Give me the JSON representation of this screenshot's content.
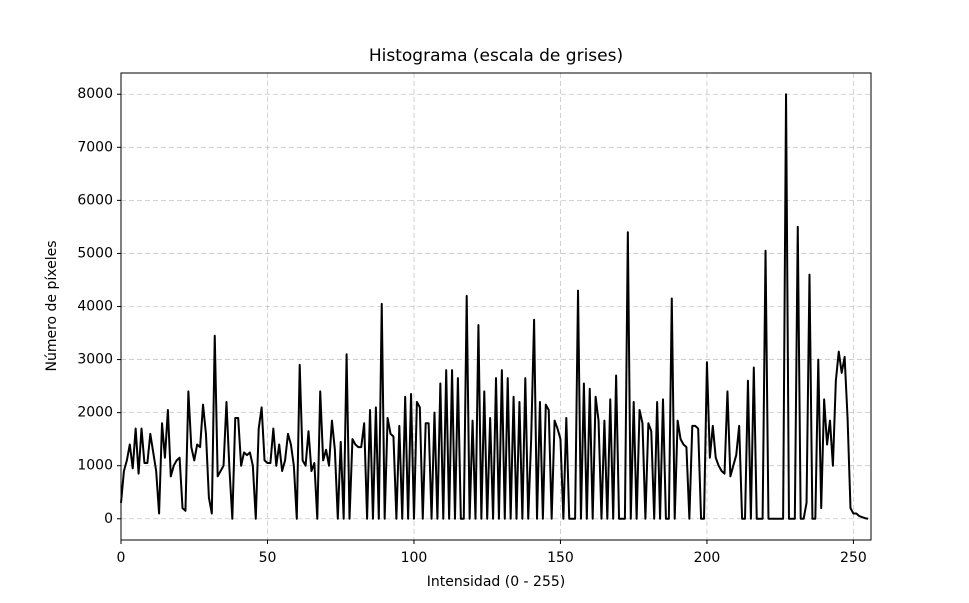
{
  "chart_data": {
    "type": "line",
    "title": "Histograma (escala de grises)",
    "xlabel": "Intensidad (0 - 255)",
    "ylabel": "Número de píxeles",
    "x": [
      0,
      1,
      2,
      3,
      4,
      5,
      6,
      7,
      8,
      9,
      10,
      11,
      12,
      13,
      14,
      15,
      16,
      17,
      18,
      19,
      20,
      21,
      22,
      23,
      24,
      25,
      26,
      27,
      28,
      29,
      30,
      31,
      32,
      33,
      34,
      35,
      36,
      37,
      38,
      39,
      40,
      41,
      42,
      43,
      44,
      45,
      46,
      47,
      48,
      49,
      50,
      51,
      52,
      53,
      54,
      55,
      56,
      57,
      58,
      59,
      60,
      61,
      62,
      63,
      64,
      65,
      66,
      67,
      68,
      69,
      70,
      71,
      72,
      73,
      74,
      75,
      76,
      77,
      78,
      79,
      80,
      81,
      82,
      83,
      84,
      85,
      86,
      87,
      88,
      89,
      90,
      91,
      92,
      93,
      94,
      95,
      96,
      97,
      98,
      99,
      100,
      101,
      102,
      103,
      104,
      105,
      106,
      107,
      108,
      109,
      110,
      111,
      112,
      113,
      114,
      115,
      116,
      117,
      118,
      119,
      120,
      121,
      122,
      123,
      124,
      125,
      126,
      127,
      128,
      129,
      130,
      131,
      132,
      133,
      134,
      135,
      136,
      137,
      138,
      139,
      140,
      141,
      142,
      143,
      144,
      145,
      146,
      147,
      148,
      149,
      150,
      151,
      152,
      153,
      154,
      155,
      156,
      157,
      158,
      159,
      160,
      161,
      162,
      163,
      164,
      165,
      166,
      167,
      168,
      169,
      170,
      171,
      172,
      173,
      174,
      175,
      176,
      177,
      178,
      179,
      180,
      181,
      182,
      183,
      184,
      185,
      186,
      187,
      188,
      189,
      190,
      191,
      192,
      193,
      194,
      195,
      196,
      197,
      198,
      199,
      200,
      201,
      202,
      203,
      204,
      205,
      206,
      207,
      208,
      209,
      210,
      211,
      212,
      213,
      214,
      215,
      216,
      217,
      218,
      219,
      220,
      221,
      222,
      223,
      224,
      225,
      226,
      227,
      228,
      229,
      230,
      231,
      232,
      233,
      234,
      235,
      236,
      237,
      238,
      239,
      240,
      241,
      242,
      243,
      244,
      245,
      246,
      247,
      248,
      249,
      250,
      251,
      252,
      253,
      254,
      255
    ],
    "series": [
      {
        "color": "#000000",
        "values": [
          300,
          900,
          1100,
          1400,
          950,
          1700,
          850,
          1700,
          1050,
          1050,
          1600,
          1250,
          900,
          100,
          1800,
          1150,
          2050,
          800,
          1000,
          1100,
          1150,
          200,
          150,
          2400,
          1350,
          1100,
          1400,
          1350,
          2150,
          1600,
          400,
          100,
          3450,
          800,
          900,
          1000,
          2200,
          950,
          0,
          1900,
          1900,
          1000,
          1250,
          1200,
          1250,
          1000,
          0,
          1700,
          2100,
          1100,
          1050,
          1050,
          1700,
          1000,
          1400,
          900,
          1100,
          1600,
          1400,
          1000,
          0,
          2900,
          1100,
          1000,
          1650,
          900,
          1050,
          0,
          2400,
          1100,
          1300,
          1000,
          1850,
          1300,
          0,
          1450,
          0,
          3100,
          0,
          1500,
          1400,
          1350,
          1350,
          1800,
          0,
          2050,
          0,
          2100,
          0,
          4050,
          0,
          1900,
          1600,
          1550,
          0,
          1750,
          0,
          2300,
          0,
          2350,
          0,
          2200,
          2100,
          0,
          1800,
          1800,
          0,
          2000,
          0,
          2550,
          0,
          2800,
          0,
          2800,
          0,
          2650,
          0,
          0,
          4200,
          0,
          1850,
          0,
          3650,
          0,
          2400,
          0,
          1900,
          0,
          2650,
          0,
          2800,
          0,
          2650,
          0,
          2300,
          0,
          2200,
          0,
          2650,
          0,
          1500,
          3750,
          0,
          2200,
          0,
          2150,
          2050,
          0,
          1850,
          1700,
          1500,
          0,
          1900,
          0,
          0,
          0,
          4300,
          0,
          2550,
          0,
          2450,
          0,
          2300,
          1850,
          0,
          1850,
          0,
          2250,
          0,
          2700,
          0,
          0,
          0,
          5400,
          0,
          2200,
          0,
          2050,
          1800,
          0,
          1800,
          1650,
          0,
          2200,
          0,
          2250,
          0,
          0,
          4150,
          0,
          1850,
          1500,
          1400,
          1350,
          0,
          1750,
          1750,
          1700,
          0,
          0,
          2950,
          1150,
          1750,
          1150,
          1000,
          900,
          850,
          2400,
          800,
          1000,
          1200,
          1750,
          0,
          0,
          2600,
          0,
          2850,
          0,
          0,
          0,
          5050,
          0,
          0,
          0,
          0,
          0,
          0,
          8000,
          0,
          0,
          0,
          5500,
          0,
          0,
          300,
          4600,
          0,
          0,
          3000,
          200,
          2250,
          1400,
          1850,
          1000,
          2600,
          3150,
          2750,
          3050,
          1900,
          200,
          100,
          100,
          50,
          30,
          10,
          0
        ]
      }
    ],
    "xlim": [
      0,
      256
    ],
    "ylim": [
      -400,
      8400
    ],
    "xticks": [
      0,
      50,
      100,
      150,
      200,
      250
    ],
    "yticks": [
      0,
      1000,
      2000,
      3000,
      4000,
      5000,
      6000,
      7000,
      8000
    ],
    "grid": true
  }
}
